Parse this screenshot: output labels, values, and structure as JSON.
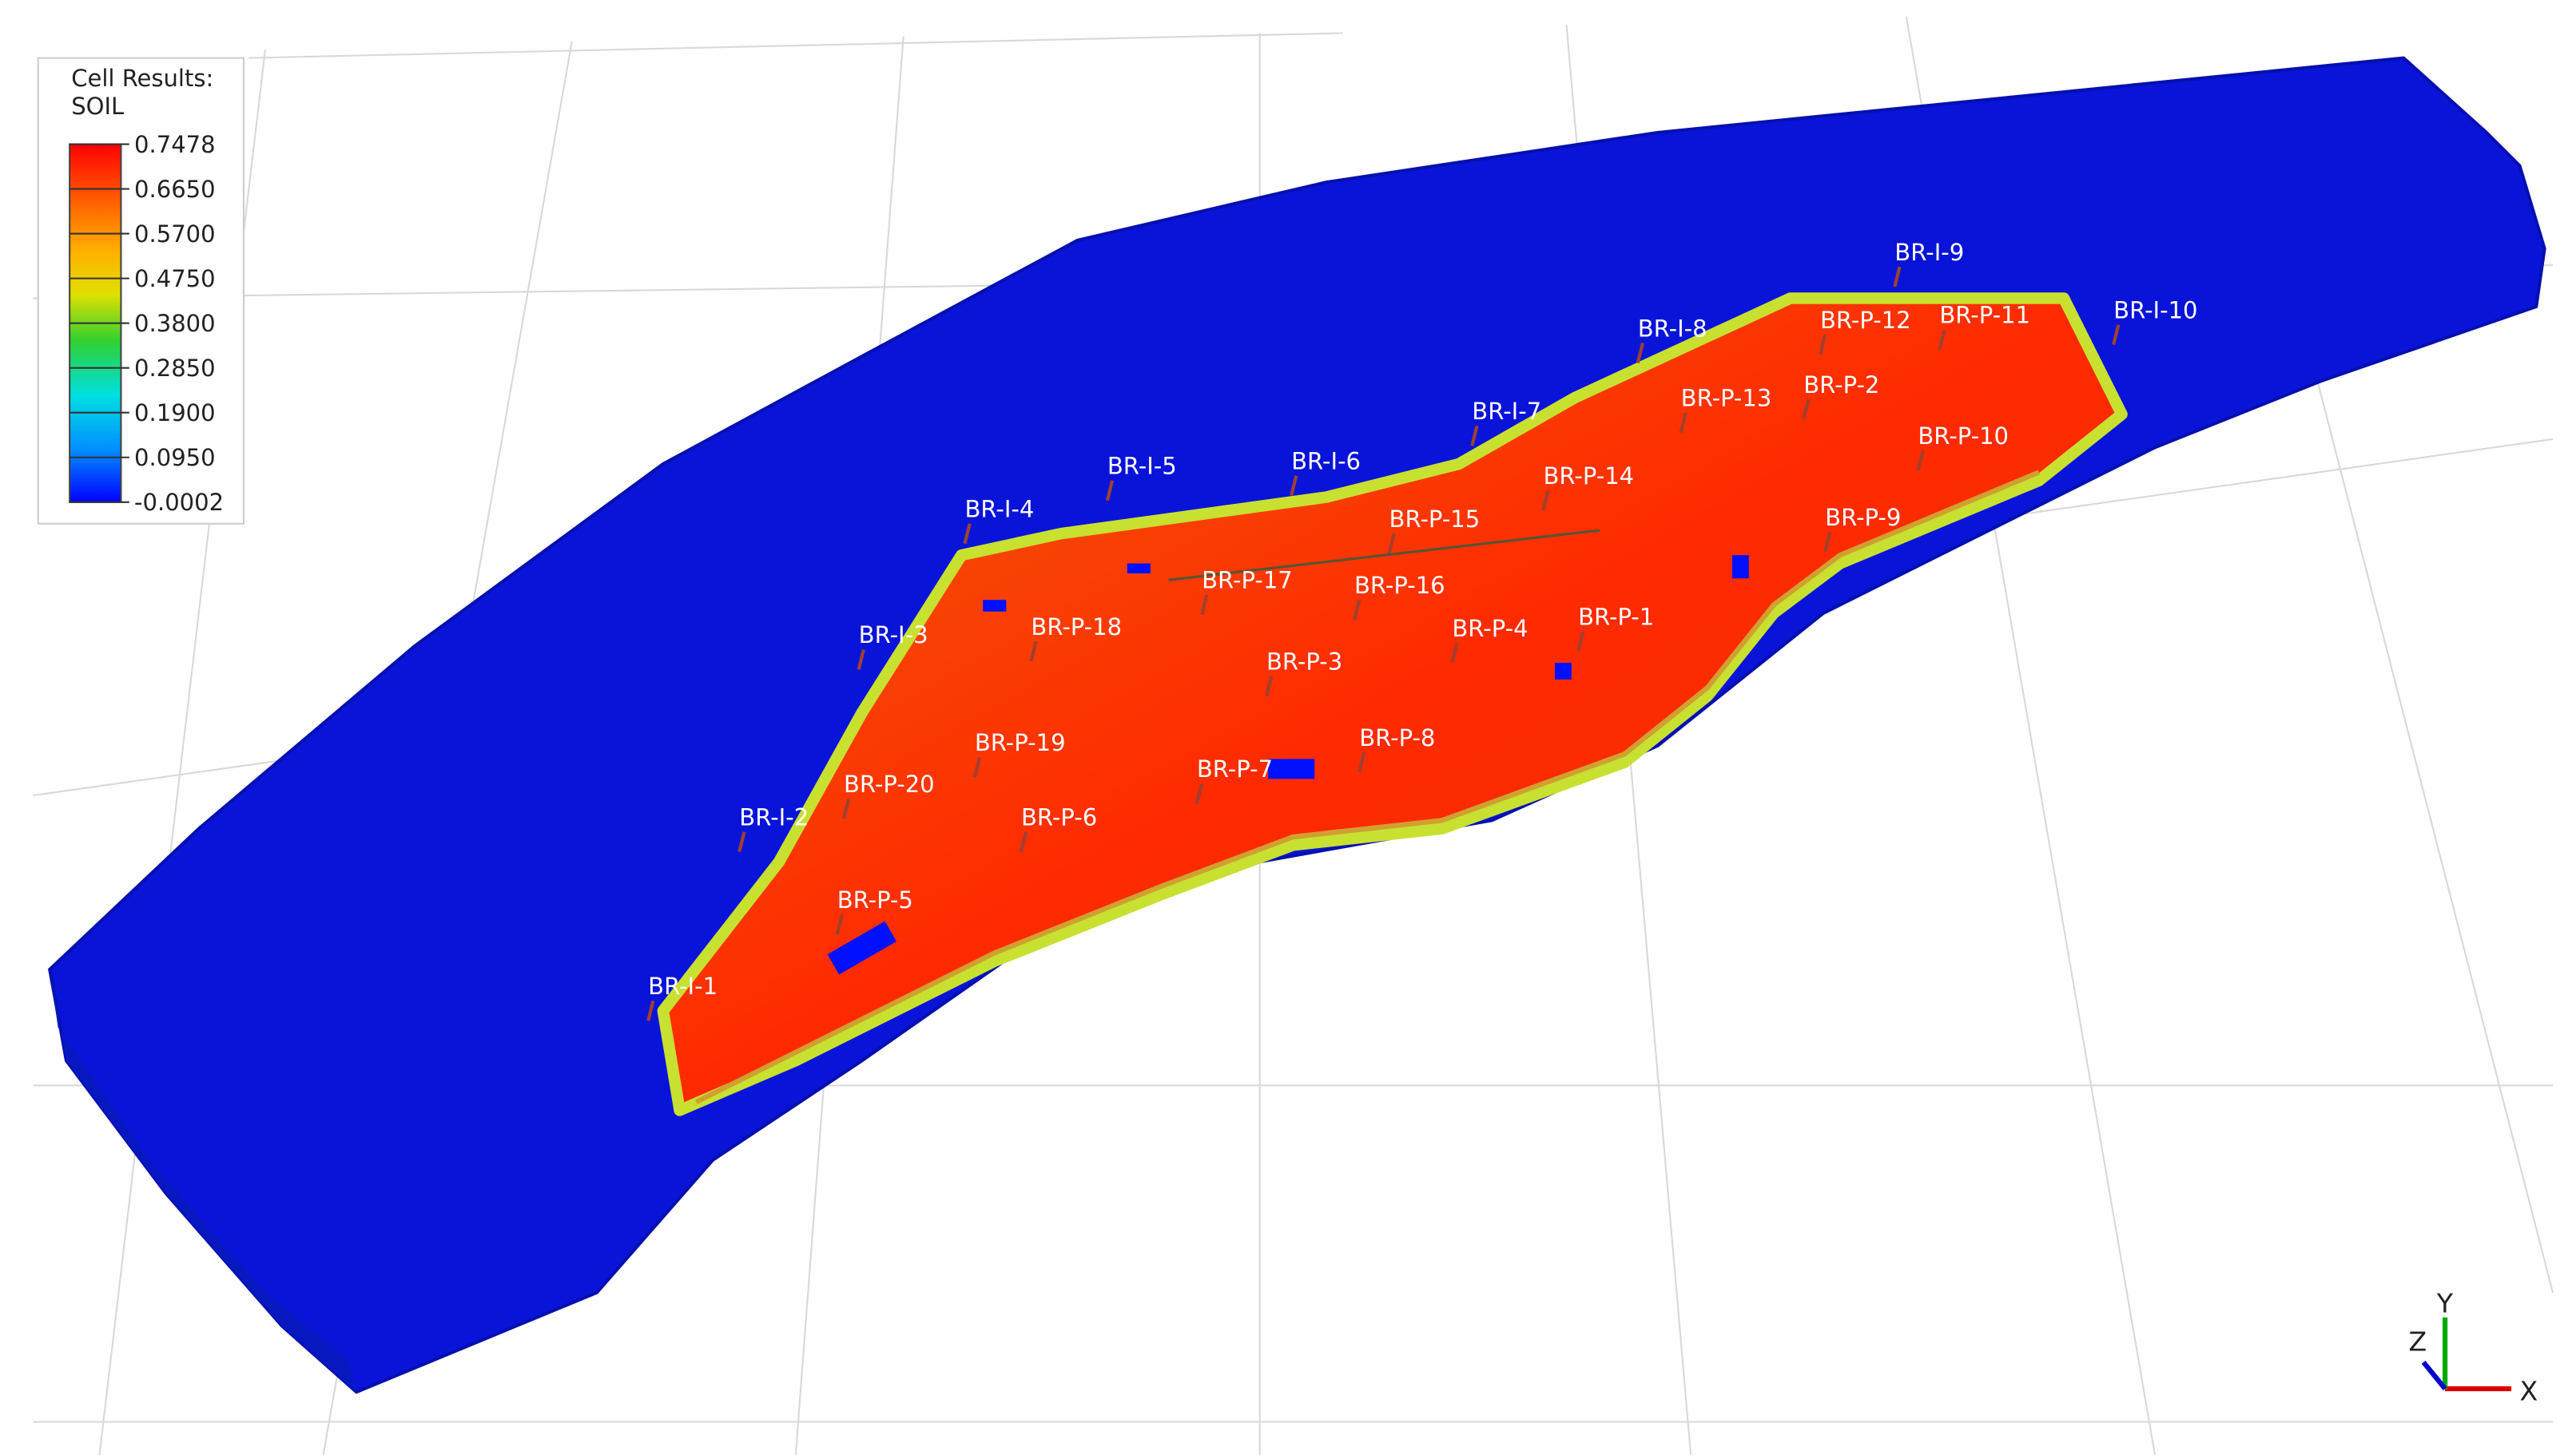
{
  "legend": {
    "title": "Cell Results:",
    "result": "SOIL",
    "ticks": [
      "0.7478",
      "0.6650",
      "0.5700",
      "0.4750",
      "0.3800",
      "0.2850",
      "0.1900",
      "0.0950",
      "-0.0002"
    ]
  },
  "wells": [
    "BR-I-9",
    "BR-I-8",
    "BR-P-12",
    "BR-P-11",
    "BR-I-10",
    "BR-P-13",
    "BR-P-2",
    "BR-P-10",
    "BR-I-7",
    "BR-P-14",
    "BR-P-9",
    "BR-I-5",
    "BR-I-6",
    "BR-I-4",
    "BR-P-15",
    "BR-P-17",
    "BR-P-16",
    "BR-P-4",
    "BR-P-1",
    "BR-I-3",
    "BR-P-18",
    "BR-P-3",
    "BR-P-8",
    "BR-P-19",
    "BR-P-7",
    "BR-P-20",
    "BR-P-6",
    "BR-I-2",
    "BR-P-5",
    "BR-I-1"
  ],
  "axes": {
    "x": "X",
    "y": "Y",
    "z": "Z"
  }
}
